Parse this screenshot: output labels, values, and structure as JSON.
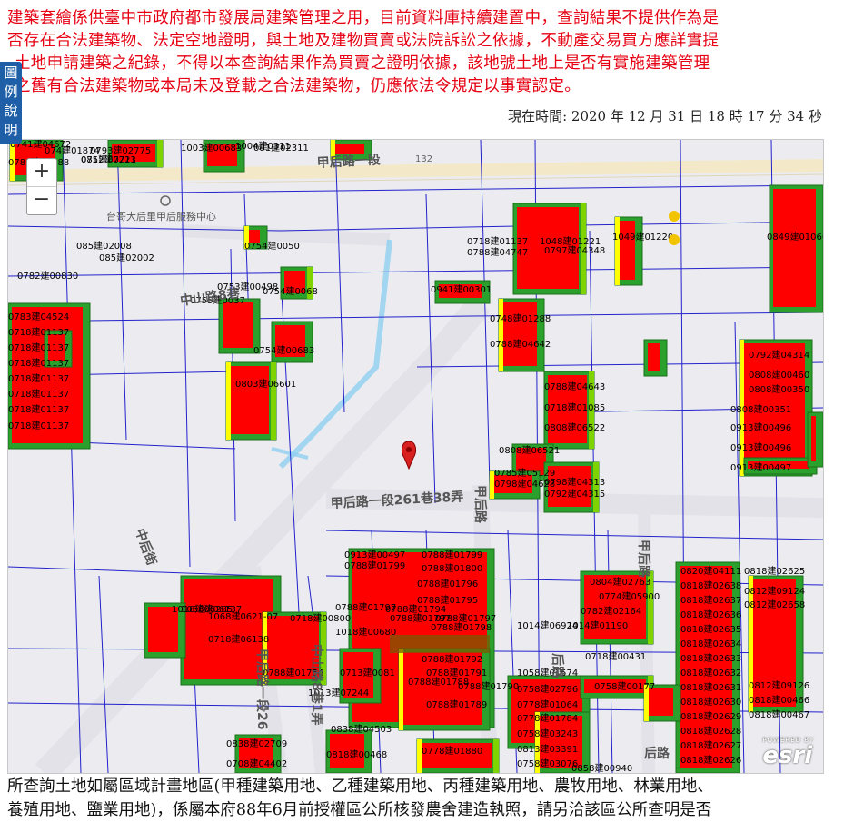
{
  "notice": {
    "lines": [
      "建築套繪係供臺中市政府都市發展局建築管理之用，目前資料庫持續建置中，查詢結果不提供作為是",
      "否存在合法建築物、法定空地證明，與土地及建物買賣或法院訴訟之依據，不動產交易買方應詳實提",
      "土地申請建築之紀錄，不得以本查詢結果作為買賣之證明依據，該地號土地上是否有實施建築管理",
      "之舊有合法建築物或本局未及登載之合法建築物，仍應依法令規定以事實認定。"
    ]
  },
  "legend_tab": {
    "label": "圖例說明"
  },
  "timestamp": "現在時間: 2020 年 12 月 31 日 18 時 17 分 34 秒",
  "map": {
    "zoom_in": "+",
    "zoom_out": "−",
    "attribution": {
      "powered": "POWERED BY",
      "brand": "esri"
    },
    "street_labels": [
      "甲后路一段",
      "甲后路一段261巷38弄",
      "中山路8巷",
      "甲后路",
      "甲后路",
      "后路",
      "中后街",
      "甲后路一段26",
      "中山路8巷1弄",
      "后路"
    ],
    "poi_label": "台哥大后里甲后服務中心",
    "road_number": "132",
    "building_labels": [
      "0741建04672",
      "074建01874",
      "0793建02775",
      "081建07723",
      "1003建00683",
      "1004建0311",
      "081建02311",
      "0785建01888",
      "0752建0211",
      "085建02008",
      "085建02002",
      "0754建0050",
      "0782建00830",
      "0754建0068",
      "0755建0037",
      "0753建00498",
      "0754建00683",
      "0803建06601",
      "0783建04524",
      "0718建01137",
      "0718建01137",
      "0718建01137",
      "0718建01137",
      "0718建01137",
      "0718建01137",
      "0718建01137",
      "0718建01137",
      "0788建04747",
      "1048建01221",
      "0797建04348",
      "1049建01220",
      "0849建01066",
      "0941建00301",
      "0748建01288",
      "0788建04642",
      "0788建04643",
      "0718建01085",
      "0808建06522",
      "0808建06521",
      "0785建05129",
      "0798建04628",
      "0798建04313",
      "0792建04315",
      "0792建04314",
      "0808建00460",
      "0808建00350",
      "0808建00351",
      "0913建00496",
      "0913建00496",
      "0913建00497",
      "0913建00497",
      "0788建01799",
      "0788建01799",
      "0788建01800",
      "0788建01796",
      "0788建01795",
      "0788建01794",
      "0788建01797",
      "0788建01797",
      "0788建01798",
      "0788建01792",
      "0788建01791",
      "0788建01790",
      "0788建01789",
      "0788建01788",
      "0788建01797",
      "1018建00680",
      "1018建06285",
      "1068建06137",
      "1068建0621-07",
      "0718建06138",
      "0718建00800",
      "0788建01754",
      "0713建0081",
      "1013建07244",
      "0838建04503",
      "0838建02709",
      "0708建04402",
      "0778建01880",
      "0804建02763",
      "0774建05900",
      "0782建02164",
      "1014建01190",
      "1014建06924",
      "0718建00431",
      "1058建01574",
      "0758建02796",
      "0778建01064",
      "0778建01784",
      "0758建03243",
      "0813建03391",
      "0758建03076",
      "0758建00177",
      "0858建00940",
      "0820建04111",
      "0818建02638",
      "0818建02637",
      "0818建02636",
      "0818建02635",
      "0818建02634",
      "0818建02633",
      "0818建02632",
      "0818建02631",
      "0818建02630",
      "0818建02629",
      "0818建02628",
      "0818建02627",
      "0818建02626",
      "0818建02625",
      "0812建09124",
      "0812建02658",
      "0812建09126",
      "0818建00466",
      "0818建00467",
      "0818建00468"
    ],
    "colors": {
      "red": "#ff0000",
      "green": "#2ca02c",
      "lime": "#7fd400",
      "yellow": "#ffff00",
      "parcel_line": "#2222cc",
      "base": "#ececf0",
      "water": "#8fd0f0"
    },
    "marker": "location-pin"
  },
  "description": {
    "lines": [
      "所查詢土地如屬區域計畫地區(甲種建築用地、乙種建築用地、丙種建築用地、農牧用地、林業用地、",
      "養殖用地、鹽業用地)，係屬本府88年6月前授權區公所核發農舍建造執照，請另洽該區公所查明是否"
    ]
  }
}
